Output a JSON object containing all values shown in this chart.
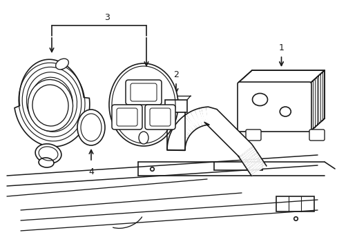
{
  "background_color": "#ffffff",
  "line_color": "#1a1a1a",
  "line_width": 1.2,
  "figsize": [
    4.89,
    3.6
  ],
  "dpi": 100,
  "label_fontsize": 9
}
